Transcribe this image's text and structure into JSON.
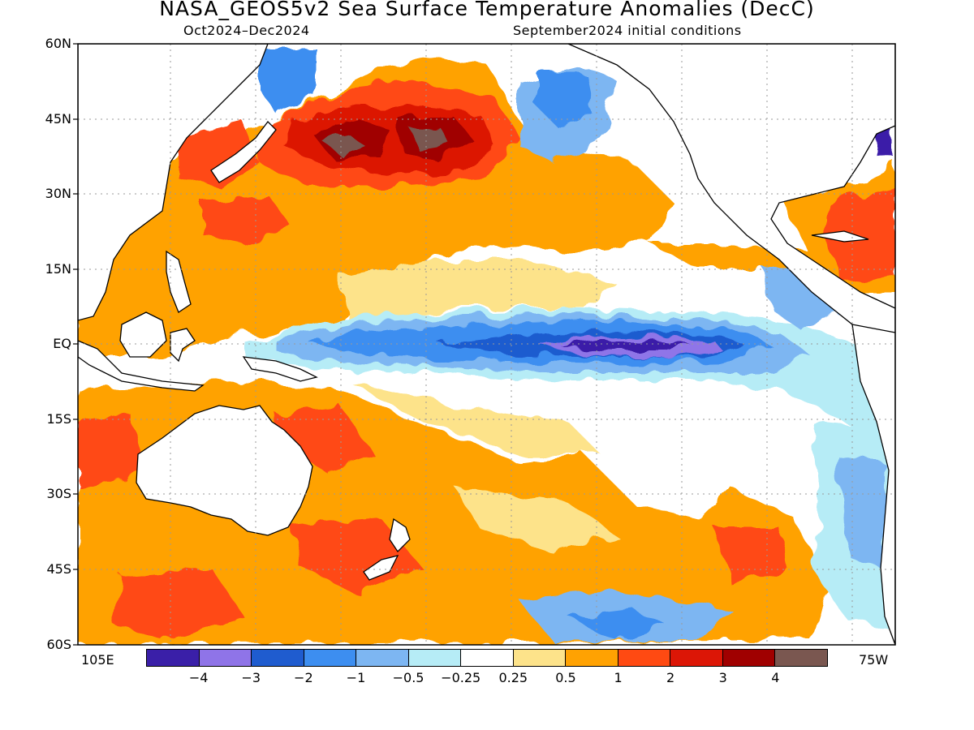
{
  "title": "NASA_GEOS5v2 Sea Surface Temperature Anomalies (DecC)",
  "subtitle_left": "Oct2024–Dec2024",
  "subtitle_right": "September2024 initial conditions",
  "lat_labels": [
    "60N",
    "45N",
    "30N",
    "15N",
    "EQ",
    "15S",
    "30S",
    "45S",
    "60S"
  ],
  "lon_labels": {
    "west": "105E",
    "east": "75W"
  },
  "colorbar": {
    "colors": [
      "#3a1fa8",
      "#8f74e8",
      "#1f5ccf",
      "#3d8ef0",
      "#7db6f2",
      "#b6ecf6",
      "#ffffff",
      "#fde38a",
      "#ffa202",
      "#ff4a12",
      "#dc1606",
      "#a00000",
      "#7a5750"
    ],
    "ticks": [
      "−4",
      "−3",
      "−2",
      "−1",
      "−0.5",
      "−0.25",
      "0.25",
      "0.5",
      "1",
      "2",
      "3",
      "4"
    ]
  },
  "map_palette": {
    "ocean_default": "#ffffff",
    "land": "#ffffff",
    "coastline": "#000000",
    "gridline": "#9a9a9a"
  }
}
